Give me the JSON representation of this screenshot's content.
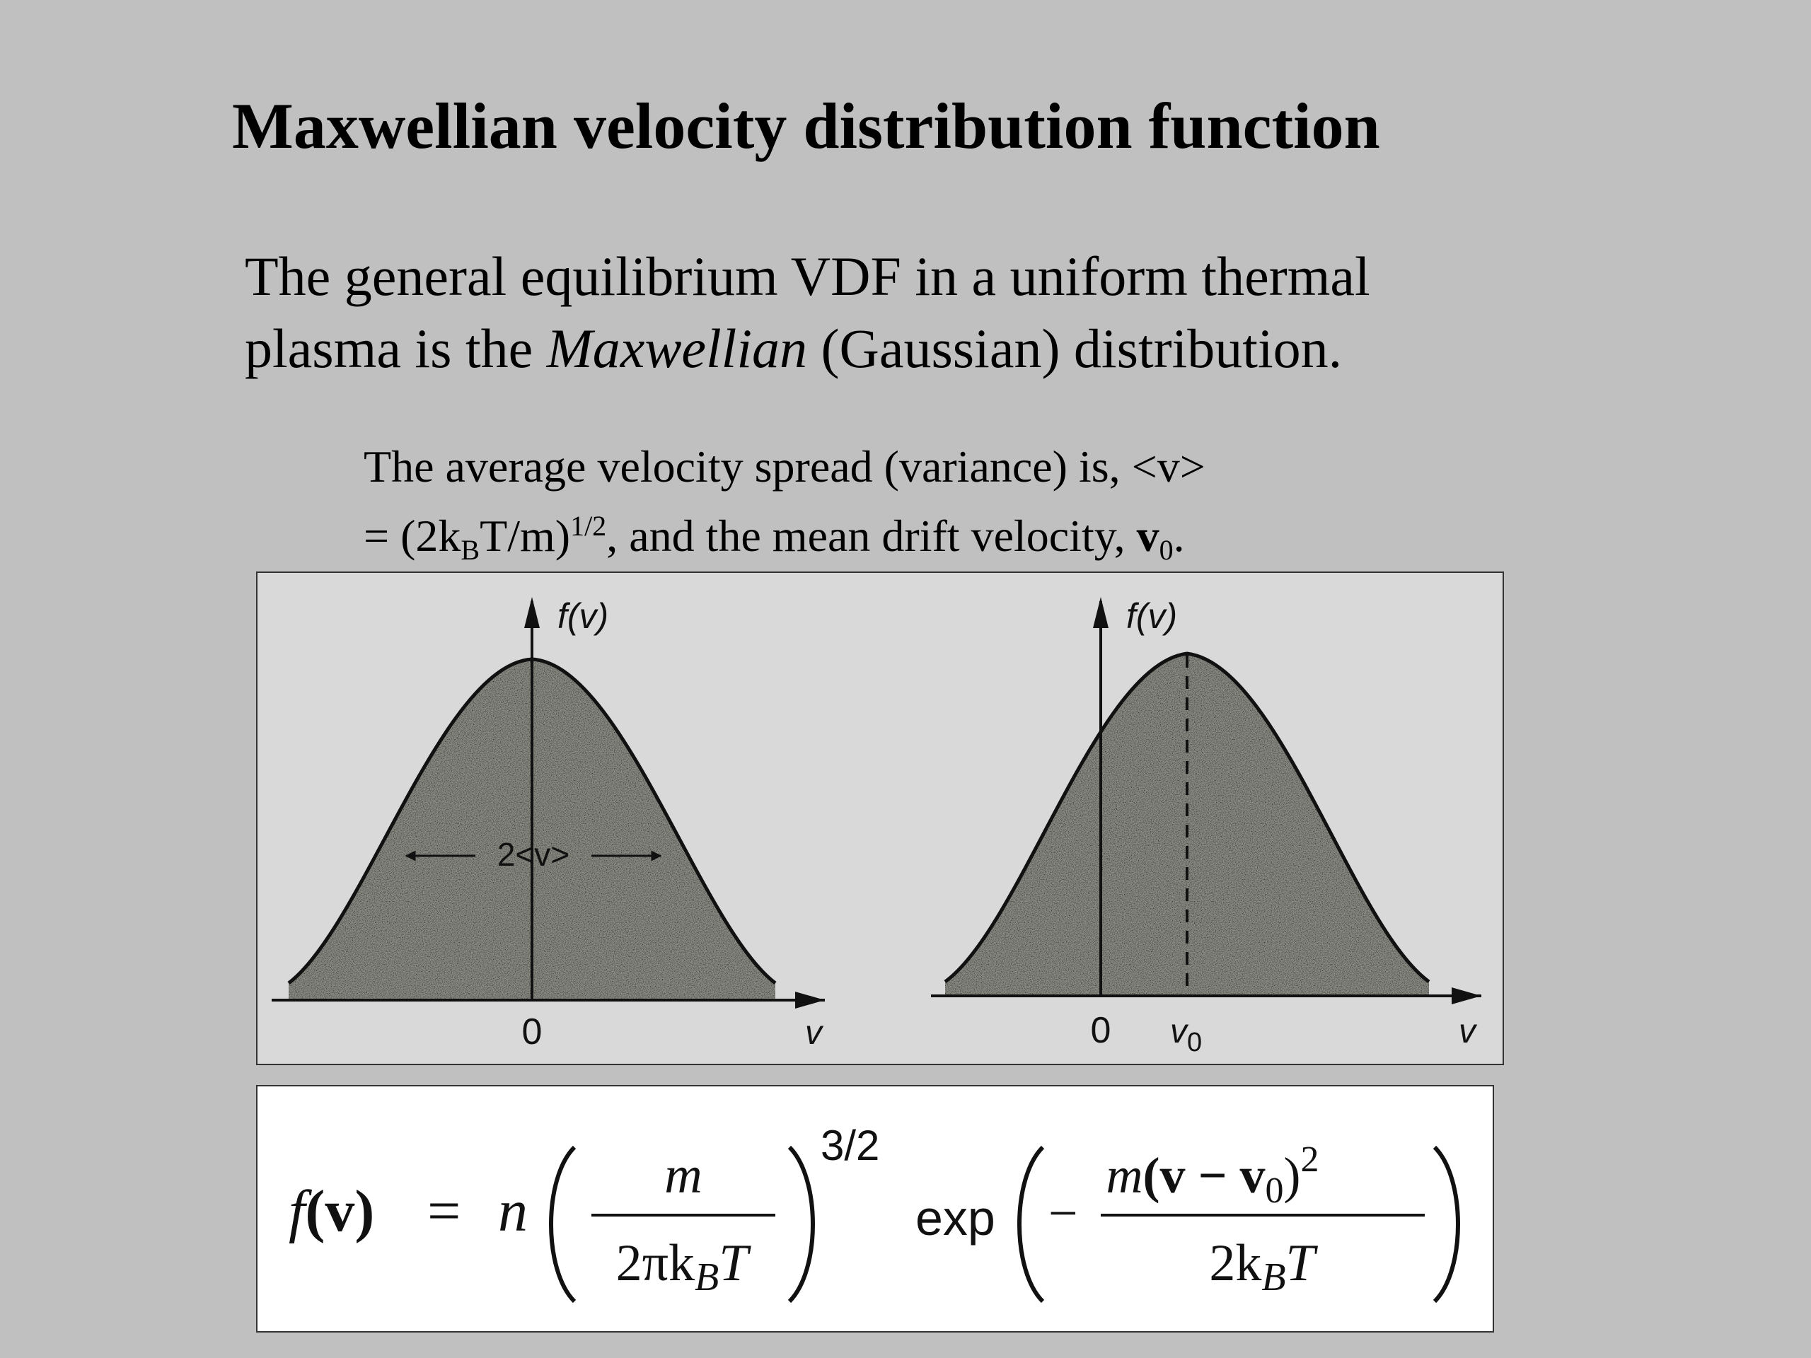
{
  "slide": {
    "title": "Maxwellian velocity distribution function",
    "intro": {
      "line1": "The general equilibrium VDF in a uniform thermal",
      "line2_before": "plasma is the ",
      "line2_italic": "Maxwellian",
      "line2_after": " (Gaussian) distribution."
    },
    "spread": {
      "line1": "The average velocity spread (variance) is,  <v>",
      "line2_a": "= (2k",
      "line2_sub": "B",
      "line2_b": "T/m)",
      "line2_sup": "1/2",
      "line2_c": ", and the mean drift velocity, ",
      "line2_bold": "v",
      "line2_sub2": "0",
      "line2_end": "."
    }
  },
  "figure": {
    "left": {
      "y_axis_label": "f(v)",
      "x_axis_label": "v",
      "origin_label": "0",
      "width_label": "2<v>"
    },
    "right": {
      "y_axis_label": "f(v)",
      "x_axis_label": "v",
      "origin_label": "0",
      "drift_label_main": "v",
      "drift_label_sub": "0"
    }
  },
  "formula": {
    "lhs_f": "f",
    "lhs_v": "(v)",
    "equals": "=",
    "n": "n",
    "frac1_num": "m",
    "frac1_den_a": "2πk",
    "frac1_den_sub": "B",
    "frac1_den_b": "T",
    "power": "3/2",
    "exp": "exp",
    "minus": "−",
    "frac2_num_a": "m",
    "frac2_num_b": "(v − v",
    "frac2_num_sub": "0",
    "frac2_num_c": ")",
    "frac2_num_sup": "2",
    "frac2_den_a": "2k",
    "frac2_den_sub": "B",
    "frac2_den_b": "T"
  }
}
